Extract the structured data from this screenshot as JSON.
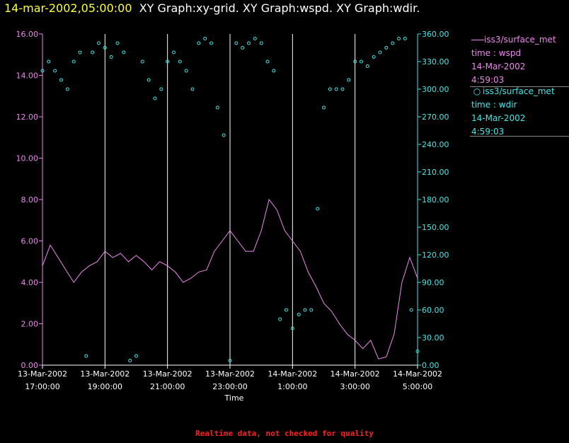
{
  "header": {
    "time": "14-mar-2002,05:00:00",
    "graphs": "XY Graph:xy-grid.  XY Graph:wspd.  XY Graph:wdir."
  },
  "legend": [
    {
      "source": "iss3/surface_met",
      "var": "time : wspd",
      "date": "14-Mar-2002",
      "time": "4:59:03",
      "color": "#ee88ee",
      "marker": "line"
    },
    {
      "source": "iss3/surface_met",
      "var": "time : wdir",
      "date": "14-Mar-2002",
      "time": "4:59:03",
      "color": "#40e8e8",
      "marker": "circle"
    }
  ],
  "footer": "Realtime data, not checked for quality",
  "chart_data": {
    "type": "line",
    "xlabel": "Time",
    "x_ticks": [
      {
        "date": "13-Mar-2002",
        "time": "17:00:00"
      },
      {
        "date": "13-Mar-2002",
        "time": "19:00:00"
      },
      {
        "date": "13-Mar-2002",
        "time": "21:00:00"
      },
      {
        "date": "13-Mar-2002",
        "time": "23:00:00"
      },
      {
        "date": "14-Mar-2002",
        "time": "1:00:00"
      },
      {
        "date": "14-Mar-2002",
        "time": "3:00:00"
      },
      {
        "date": "14-Mar-2002",
        "time": "5:00:00"
      }
    ],
    "x_range": [
      "13-Mar-2002 17:00",
      "14-Mar-2002 05:00"
    ],
    "y_left": {
      "min": 0,
      "max": 16,
      "ticks": [
        "0.00",
        "2.00",
        "4.00",
        "6.00",
        "8.00",
        "10.00",
        "12.00",
        "14.00",
        "16.00"
      ],
      "color": "#ee88ee"
    },
    "y_right": {
      "min": 0,
      "max": 360,
      "ticks": [
        "0.00",
        "30.00",
        "60.00",
        "90.00",
        "120.00",
        "150.00",
        "180.00",
        "210.00",
        "240.00",
        "270.00",
        "300.00",
        "330.00",
        "360.00"
      ],
      "color": "#40e8e8"
    },
    "grid": "vertical",
    "series": [
      {
        "axis": "left",
        "style": "line",
        "color": "#ee88ee",
        "x_hours": [
          0,
          0.25,
          0.5,
          0.75,
          1,
          1.25,
          1.5,
          1.75,
          2,
          2.25,
          2.5,
          2.75,
          3,
          3.25,
          3.5,
          3.75,
          4,
          4.25,
          4.5,
          4.75,
          5,
          5.25,
          5.5,
          5.75,
          6,
          6.25,
          6.5,
          6.75,
          7,
          7.25,
          7.5,
          7.75,
          8,
          8.25,
          8.5,
          8.75,
          9,
          9.25,
          9.5,
          9.75,
          10,
          10.25,
          10.5,
          10.75,
          11,
          11.25,
          11.5,
          11.75,
          12
        ],
        "values": [
          4.8,
          5.8,
          5.2,
          4.6,
          4.0,
          4.5,
          4.8,
          5.0,
          5.5,
          5.2,
          5.4,
          5.0,
          5.3,
          5.0,
          4.6,
          5.0,
          4.8,
          4.5,
          4.0,
          4.2,
          4.5,
          4.6,
          5.5,
          6.0,
          6.5,
          6.0,
          5.5,
          5.5,
          6.5,
          8.0,
          7.5,
          6.5,
          6.0,
          5.5,
          4.5,
          3.8,
          3.0,
          2.6,
          2.0,
          1.5,
          1.2,
          0.8,
          1.2,
          0.3,
          0.4,
          1.5,
          4.0,
          5.2,
          4.2
        ]
      },
      {
        "axis": "right",
        "style": "scatter",
        "color": "#40e8e8",
        "x_hours": [
          0,
          0.2,
          0.4,
          0.6,
          0.8,
          1,
          1.2,
          1.4,
          1.6,
          1.8,
          2,
          2.2,
          2.4,
          2.6,
          2.8,
          3,
          3.2,
          3.4,
          3.6,
          3.8,
          4,
          4.2,
          4.4,
          4.6,
          4.8,
          5,
          5.2,
          5.4,
          5.6,
          5.8,
          6,
          6.2,
          6.4,
          6.6,
          6.8,
          7,
          7.2,
          7.4,
          7.6,
          7.8,
          8,
          8.2,
          8.4,
          8.6,
          8.8,
          9,
          9.2,
          9.4,
          9.6,
          9.8,
          10,
          10.2,
          10.4,
          10.6,
          10.8,
          11,
          11.2,
          11.4,
          11.6,
          11.8,
          12
        ],
        "values": [
          320,
          330,
          320,
          310,
          300,
          330,
          340,
          10,
          340,
          350,
          345,
          335,
          350,
          340,
          5,
          10,
          330,
          310,
          290,
          300,
          330,
          340,
          330,
          320,
          300,
          350,
          355,
          350,
          280,
          250,
          5,
          350,
          345,
          350,
          355,
          350,
          330,
          320,
          50,
          60,
          40,
          55,
          60,
          60,
          170,
          280,
          300,
          300,
          300,
          310,
          330,
          330,
          325,
          335,
          340,
          345,
          350,
          355,
          355,
          60,
          15
        ]
      }
    ]
  }
}
